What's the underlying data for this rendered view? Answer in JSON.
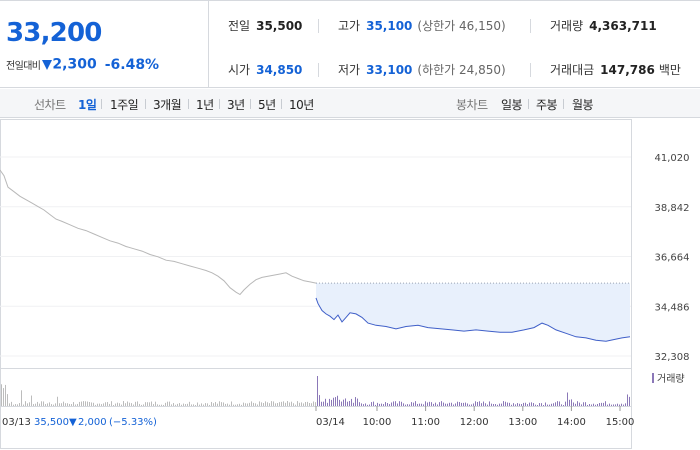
{
  "quote": {
    "price": "33,200",
    "change_label": "전일대비",
    "change_value": "2,300",
    "change_pct": "-6.48%",
    "direction": "down",
    "stats": [
      {
        "label": "전일",
        "value": "35,500"
      },
      {
        "label": "고가",
        "value": "35,100",
        "sub": "(상한가 46,150)"
      },
      {
        "label": "거래량",
        "value": "4,363,711"
      },
      {
        "label": "시가",
        "value": "34,850"
      },
      {
        "label": "저가",
        "value": "33,100",
        "sub": "(하한가 24,850)"
      },
      {
        "label": "거래대금",
        "value": "147,786",
        "unit": "백만"
      }
    ]
  },
  "period_tabs": {
    "label": "선차트",
    "items": [
      "1일",
      "1주일",
      "3개월",
      "1년",
      "3년",
      "5년",
      "10년"
    ],
    "active": "1일",
    "candle_label": "봉차트",
    "candle_items": [
      "일봉",
      "주봉",
      "월봉"
    ]
  },
  "colors": {
    "accent": "#1462d6",
    "line_today": "#3f5fc8",
    "line_prev": "#b8b8b8",
    "fill_today": "#e8f0fc",
    "volume_prev": "#bcbcbc",
    "volume_today": "#8b78b8"
  },
  "chart_data": {
    "type": "line",
    "y_ticks": [
      "41,020",
      "38,842",
      "36,664",
      "34,486",
      "32,308"
    ],
    "ylim": [
      32308,
      41020
    ],
    "prev_day": {
      "date": "03/13",
      "close": "35,500",
      "change": "2,000",
      "change_pct": "(−5.33%)",
      "points": [
        [
          0,
          40450
        ],
        [
          4,
          40200
        ],
        [
          8,
          39700
        ],
        [
          14,
          39500
        ],
        [
          20,
          39300
        ],
        [
          26,
          39150
        ],
        [
          32,
          39000
        ],
        [
          38,
          38850
        ],
        [
          44,
          38700
        ],
        [
          50,
          38500
        ],
        [
          56,
          38300
        ],
        [
          62,
          38200
        ],
        [
          70,
          38050
        ],
        [
          78,
          37900
        ],
        [
          86,
          37800
        ],
        [
          94,
          37650
        ],
        [
          102,
          37500
        ],
        [
          110,
          37350
        ],
        [
          118,
          37250
        ],
        [
          126,
          37100
        ],
        [
          134,
          37000
        ],
        [
          142,
          36900
        ],
        [
          150,
          36750
        ],
        [
          158,
          36650
        ],
        [
          166,
          36500
        ],
        [
          174,
          36450
        ],
        [
          182,
          36350
        ],
        [
          190,
          36250
        ],
        [
          198,
          36150
        ],
        [
          206,
          36050
        ],
        [
          212,
          35950
        ],
        [
          218,
          35800
        ],
        [
          224,
          35600
        ],
        [
          230,
          35300
        ],
        [
          236,
          35100
        ],
        [
          240,
          35000
        ],
        [
          244,
          35200
        ],
        [
          250,
          35450
        ],
        [
          256,
          35650
        ],
        [
          262,
          35750
        ],
        [
          268,
          35800
        ],
        [
          274,
          35850
        ],
        [
          280,
          35900
        ],
        [
          286,
          35950
        ],
        [
          292,
          35800
        ],
        [
          298,
          35700
        ],
        [
          304,
          35600
        ],
        [
          310,
          35550
        ],
        [
          316,
          35500
        ]
      ]
    },
    "today": {
      "date": "03/14",
      "time_labels": [
        "10:00",
        "11:00",
        "12:00",
        "13:00",
        "14:00",
        "15:00"
      ],
      "points": [
        [
          316,
          34850
        ],
        [
          318,
          34600
        ],
        [
          322,
          34300
        ],
        [
          326,
          34150
        ],
        [
          330,
          34050
        ],
        [
          334,
          33900
        ],
        [
          338,
          34100
        ],
        [
          342,
          33800
        ],
        [
          346,
          34000
        ],
        [
          350,
          34200
        ],
        [
          356,
          34150
        ],
        [
          362,
          34000
        ],
        [
          368,
          33750
        ],
        [
          376,
          33650
        ],
        [
          386,
          33600
        ],
        [
          396,
          33500
        ],
        [
          406,
          33600
        ],
        [
          418,
          33650
        ],
        [
          428,
          33550
        ],
        [
          440,
          33500
        ],
        [
          452,
          33450
        ],
        [
          464,
          33400
        ],
        [
          476,
          33450
        ],
        [
          488,
          33400
        ],
        [
          500,
          33350
        ],
        [
          512,
          33350
        ],
        [
          524,
          33450
        ],
        [
          534,
          33550
        ],
        [
          542,
          33750
        ],
        [
          548,
          33650
        ],
        [
          556,
          33450
        ],
        [
          566,
          33300
        ],
        [
          576,
          33150
        ],
        [
          586,
          33100
        ],
        [
          596,
          33000
        ],
        [
          606,
          32950
        ],
        [
          616,
          33050
        ],
        [
          622,
          33100
        ],
        [
          630,
          33150
        ]
      ]
    },
    "volume_label": "거래량"
  }
}
